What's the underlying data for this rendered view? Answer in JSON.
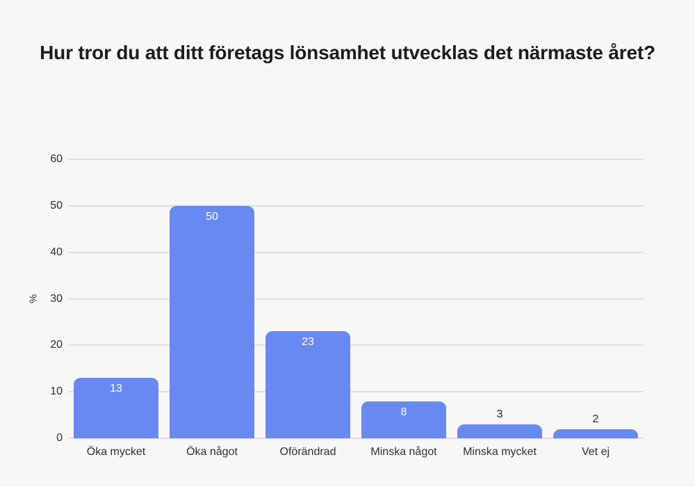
{
  "colors": {
    "background": "#f7f7f7",
    "bar": "#6789f0",
    "gridline": "#dedede",
    "title_text": "#1c1c1c",
    "axis_text": "#2e2e2e",
    "value_label_inside": "#ffffff",
    "value_label_outside": "#222222"
  },
  "chart_data": {
    "type": "bar",
    "title": "Hur tror du att ditt företags lönsamhet utvecklas det närmaste året?",
    "categories": [
      "Öka mycket",
      "Öka något",
      "Oförändrad",
      "Minska något",
      "Minska mycket",
      "Vet ej"
    ],
    "values": [
      13,
      50,
      23,
      8,
      3,
      2
    ],
    "xlabel": "",
    "ylabel": "%",
    "ylim": [
      0,
      60
    ],
    "yticks": [
      0,
      10,
      20,
      30,
      40,
      50,
      60
    ],
    "grid": true,
    "legend": false,
    "value_labels": true
  }
}
